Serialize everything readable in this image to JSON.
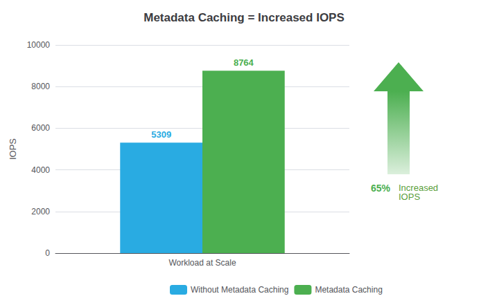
{
  "chart_data": {
    "type": "bar",
    "title": "Metadata Caching = Increased IOPS",
    "categories": [
      "Workload at Scale"
    ],
    "series": [
      {
        "name": "Without Metadata Caching",
        "color": "#29ABE2",
        "values": [
          5309
        ]
      },
      {
        "name": "Metadata Caching",
        "color": "#4CAF50",
        "values": [
          8764
        ]
      }
    ],
    "ylabel": "IOPS",
    "ylim": [
      0,
      10000
    ],
    "yticks": [
      0,
      2000,
      4000,
      6000,
      8000,
      10000
    ],
    "grid": true,
    "legend": "bottom",
    "data_labels": true,
    "annotations": [
      {
        "text": "65%",
        "color": "#4CAF50"
      },
      {
        "text": "Increased\nIOPS",
        "color": "#5a9e3a"
      }
    ]
  }
}
